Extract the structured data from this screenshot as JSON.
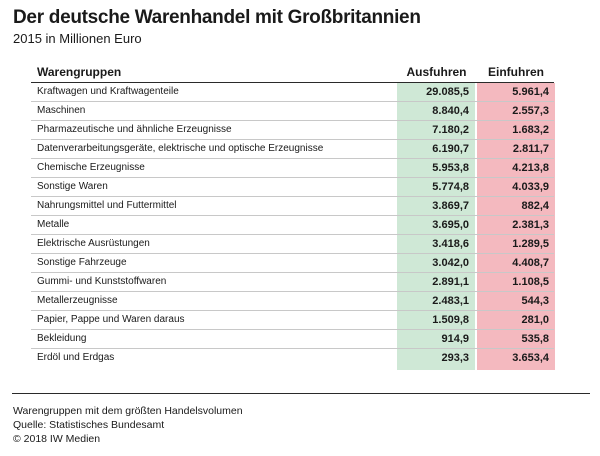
{
  "header": {
    "title": "Der deutsche Warenhandel mit Großbritannien",
    "subtitle": "2015 in Millionen Euro"
  },
  "chart_data": {
    "type": "table",
    "columns": [
      "Warengruppen",
      "Ausfuhren",
      "Einfuhren"
    ],
    "rows": [
      {
        "group": "Kraftwagen und Kraftwagenteile",
        "ausfuhren": "29.085,5",
        "einfuhren": "5.961,4"
      },
      {
        "group": "Maschinen",
        "ausfuhren": "8.840,4",
        "einfuhren": "2.557,3"
      },
      {
        "group": "Pharmazeutische und ähnliche Erzeugnisse",
        "ausfuhren": "7.180,2",
        "einfuhren": "1.683,2"
      },
      {
        "group": "Datenverarbeitungsgeräte, elektrische und optische Erzeugnisse",
        "ausfuhren": "6.190,7",
        "einfuhren": "2.811,7"
      },
      {
        "group": "Chemische Erzeugnisse",
        "ausfuhren": "5.953,8",
        "einfuhren": "4.213,8"
      },
      {
        "group": "Sonstige Waren",
        "ausfuhren": "5.774,8",
        "einfuhren": "4.033,9"
      },
      {
        "group": "Nahrungsmittel und Futtermittel",
        "ausfuhren": "3.869,7",
        "einfuhren": "882,4"
      },
      {
        "group": "Metalle",
        "ausfuhren": "3.695,0",
        "einfuhren": "2.381,3"
      },
      {
        "group": "Elektrische Ausrüstungen",
        "ausfuhren": "3.418,6",
        "einfuhren": "1.289,5"
      },
      {
        "group": "Sonstige Fahrzeuge",
        "ausfuhren": "3.042,0",
        "einfuhren": "4.408,7"
      },
      {
        "group": "Gummi- und Kunststoffwaren",
        "ausfuhren": "2.891,1",
        "einfuhren": "1.108,5"
      },
      {
        "group": "Metallerzeugnisse",
        "ausfuhren": "2.483,1",
        "einfuhren": "544,3"
      },
      {
        "group": "Papier, Pappe und Waren daraus",
        "ausfuhren": "1.509,8",
        "einfuhren": "281,0"
      },
      {
        "group": "Bekleidung",
        "ausfuhren": "914,9",
        "einfuhren": "535,8"
      },
      {
        "group": "Erdöl und Erdgas",
        "ausfuhren": "293,3",
        "einfuhren": "3.653,4"
      }
    ],
    "colors": {
      "ausfuhren": "#cfe8d6",
      "einfuhren": "#f4b9bf"
    }
  },
  "footer": {
    "note": "Warengruppen mit dem größten Handelsvolumen",
    "source": "Quelle: Statistisches Bundesamt",
    "copyright": "© 2018 IW Medien"
  }
}
